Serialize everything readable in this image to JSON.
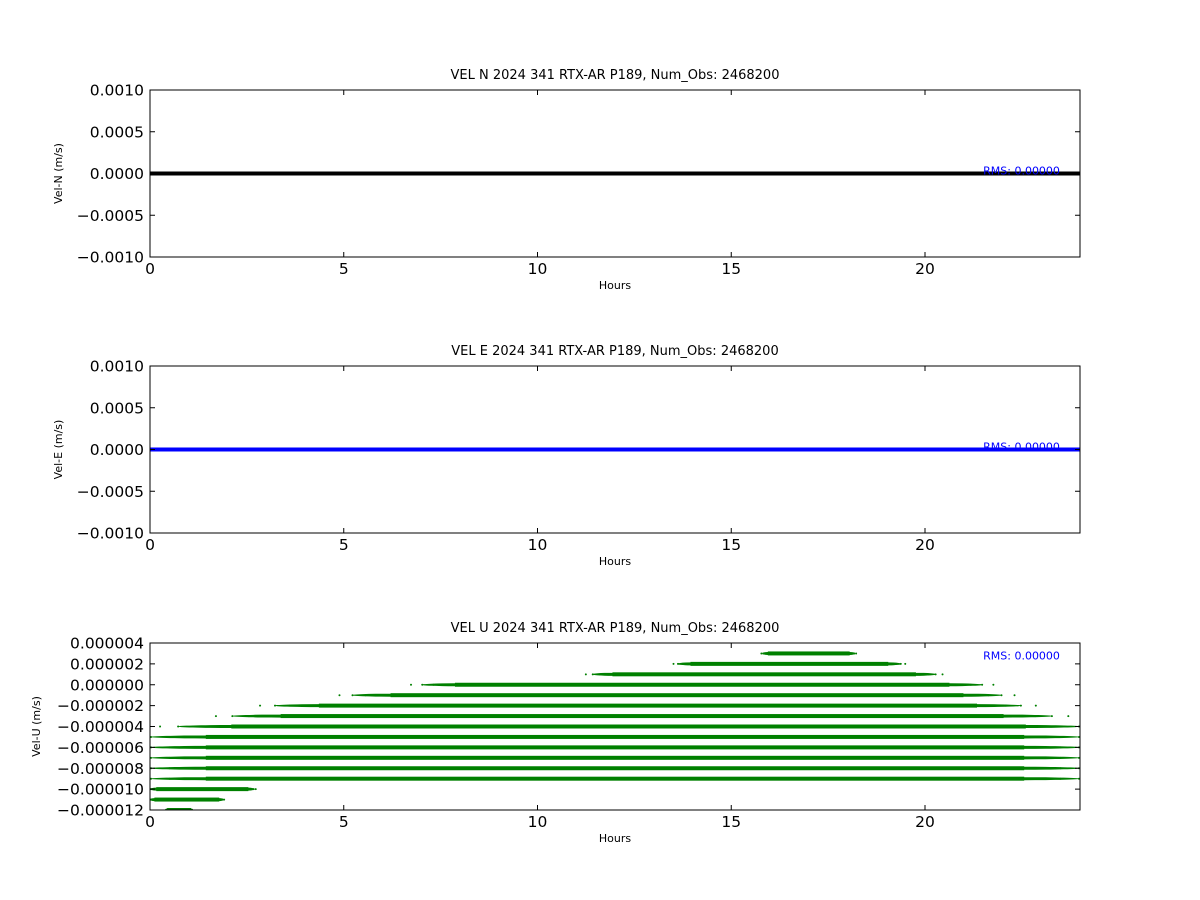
{
  "chart_data": [
    {
      "type": "line",
      "title": "VEL N 2024 341 RTX-AR  P189, Num_Obs: 2468200",
      "xlabel": "Hours",
      "ylabel": "Vel-N (m/s)",
      "xlim": [
        0,
        24
      ],
      "ylim": [
        -0.001,
        0.001
      ],
      "xticks": [
        0,
        5,
        10,
        15,
        20
      ],
      "xtick_labels": [
        "0",
        "5",
        "10",
        "15",
        "20"
      ],
      "yticks": [
        0.001,
        0.0005,
        0.0,
        -0.0005,
        -0.001
      ],
      "ytick_labels": [
        "0.0010",
        "0.0005",
        "0.0000",
        "−0.0005",
        "−0.0010"
      ],
      "series": [
        {
          "color": "#000000",
          "x": [
            0,
            24
          ],
          "y": [
            0,
            0
          ]
        }
      ],
      "annotation": {
        "text": "RMS:  0.00000",
        "color": "#0000ff",
        "x": 21.5,
        "y": 0.0
      },
      "grid": false
    },
    {
      "type": "line",
      "title": "VEL E 2024 341 RTX-AR  P189, Num_Obs: 2468200",
      "xlabel": "Hours",
      "ylabel": "Vel-E (m/s)",
      "xlim": [
        0,
        24
      ],
      "ylim": [
        -0.001,
        0.001
      ],
      "xticks": [
        0,
        5,
        10,
        15,
        20
      ],
      "xtick_labels": [
        "0",
        "5",
        "10",
        "15",
        "20"
      ],
      "yticks": [
        0.001,
        0.0005,
        0.0,
        -0.0005,
        -0.001
      ],
      "ytick_labels": [
        "0.0010",
        "0.0005",
        "0.0000",
        "−0.0005",
        "−0.0010"
      ],
      "series": [
        {
          "color": "#0000ff",
          "x": [
            0,
            24
          ],
          "y": [
            0,
            0
          ]
        }
      ],
      "annotation": {
        "text": "RMS:  0.00000",
        "color": "#0000ff",
        "x": 21.5,
        "y": 0.0
      },
      "grid": false
    },
    {
      "type": "scatter",
      "title": "VEL U 2024 341 RTX-AR  P189, Num_Obs: 2468200",
      "xlabel": "Hours",
      "ylabel": "Vel-U (m/s)",
      "xlim": [
        0,
        24
      ],
      "ylim": [
        -1.2e-05,
        4e-06
      ],
      "xticks": [
        0,
        5,
        10,
        15,
        20
      ],
      "xtick_labels": [
        "0",
        "5",
        "10",
        "15",
        "20"
      ],
      "yticks": [
        4e-06,
        2e-06,
        0.0,
        -2e-06,
        -4e-06,
        -6e-06,
        -8e-06,
        -1e-05,
        -1.2e-05
      ],
      "ytick_labels": [
        "0.000004",
        "0.000002",
        "0.000000",
        "−0.000002",
        "−0.000004",
        "−0.000006",
        "−0.000008",
        "−0.000010",
        "−0.000012"
      ],
      "series": [
        {
          "color": "#008000",
          "bands": [
            {
              "y": 3e-06,
              "x_start": 15.8,
              "x_end": 18.2
            },
            {
              "y": 2e-06,
              "x_start": 13.6,
              "x_end": 19.4
            },
            {
              "y": 1e-06,
              "x_start": 11.4,
              "x_end": 20.3
            },
            {
              "y": 0.0,
              "x_start": 7.0,
              "x_end": 21.5
            },
            {
              "y": -1e-06,
              "x_start": 5.2,
              "x_end": 22.0
            },
            {
              "y": -2e-06,
              "x_start": 3.2,
              "x_end": 22.5
            },
            {
              "y": -3e-06,
              "x_start": 2.1,
              "x_end": 23.3
            },
            {
              "y": -4e-06,
              "x_start": 0.7,
              "x_end": 24.0
            },
            {
              "y": -5e-06,
              "x_start": 0.0,
              "x_end": 24.0
            },
            {
              "y": -6e-06,
              "x_start": 0.0,
              "x_end": 24.0
            },
            {
              "y": -7e-06,
              "x_start": 0.0,
              "x_end": 24.0
            },
            {
              "y": -8e-06,
              "x_start": 0.0,
              "x_end": 24.0
            },
            {
              "y": -9e-06,
              "x_start": 0.0,
              "x_end": 24.0
            },
            {
              "y": -1e-05,
              "x_start": 0.0,
              "x_end": 2.7
            },
            {
              "y": -1.1e-05,
              "x_start": 0.0,
              "x_end": 1.9
            },
            {
              "y": -1.2e-05,
              "x_start": 0.4,
              "x_end": 1.1
            }
          ]
        }
      ],
      "annotation": {
        "text": "RMS:  0.00000",
        "color": "#0000ff",
        "x": 21.5,
        "y": 2.5e-06
      },
      "grid": false
    }
  ]
}
